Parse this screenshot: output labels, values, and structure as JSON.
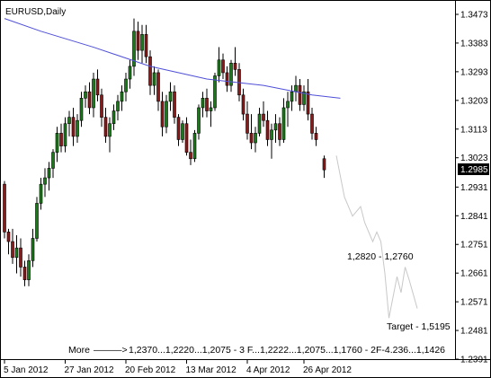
{
  "chart_data": {
    "type": "candlestick",
    "title": "EURUSD,Daily",
    "ylim": [
      1.2391,
      1.3473
    ],
    "y_ticks": [
      "1.3473",
      "1.3383",
      "1.3293",
      "1.3203",
      "1.3113",
      "1.3023",
      "1.2931",
      "1.2841",
      "1.2751",
      "1.2661",
      "1.2571",
      "1.2481",
      "1.2391"
    ],
    "x_ticks": [
      "5 Jan 2012",
      "27 Jan 2012",
      "20 Feb 2012",
      "13 Mar 2012",
      "4 Apr 2012",
      "26 Apr 2012"
    ],
    "last_price": "1.2985",
    "candles": [
      [
        1.294,
        1.295,
        1.277,
        1.279
      ],
      [
        1.279,
        1.28,
        1.272,
        1.276
      ],
      [
        1.276,
        1.28,
        1.269,
        1.271
      ],
      [
        1.271,
        1.278,
        1.266,
        1.274
      ],
      [
        1.274,
        1.277,
        1.265,
        1.268
      ],
      [
        1.268,
        1.27,
        1.262,
        1.264
      ],
      [
        1.264,
        1.272,
        1.262,
        1.27
      ],
      [
        1.27,
        1.28,
        1.268,
        1.277
      ],
      [
        1.277,
        1.29,
        1.276,
        1.288
      ],
      [
        1.288,
        1.296,
        1.286,
        1.294
      ],
      [
        1.294,
        1.299,
        1.29,
        1.296
      ],
      [
        1.296,
        1.301,
        1.292,
        1.299
      ],
      [
        1.299,
        1.305,
        1.296,
        1.304
      ],
      [
        1.304,
        1.312,
        1.301,
        1.31
      ],
      [
        1.31,
        1.313,
        1.304,
        1.306
      ],
      [
        1.306,
        1.315,
        1.304,
        1.313
      ],
      [
        1.313,
        1.317,
        1.309,
        1.315
      ],
      [
        1.315,
        1.318,
        1.306,
        1.309
      ],
      [
        1.309,
        1.316,
        1.307,
        1.314
      ],
      [
        1.314,
        1.323,
        1.312,
        1.321
      ],
      [
        1.321,
        1.325,
        1.318,
        1.323
      ],
      [
        1.323,
        1.326,
        1.316,
        1.318
      ],
      [
        1.318,
        1.329,
        1.315,
        1.327
      ],
      [
        1.327,
        1.33,
        1.32,
        1.322
      ],
      [
        1.322,
        1.324,
        1.312,
        1.315
      ],
      [
        1.315,
        1.318,
        1.307,
        1.309
      ],
      [
        1.309,
        1.315,
        1.304,
        1.313
      ],
      [
        1.313,
        1.319,
        1.311,
        1.317
      ],
      [
        1.317,
        1.322,
        1.314,
        1.32
      ],
      [
        1.32,
        1.325,
        1.317,
        1.323
      ],
      [
        1.323,
        1.329,
        1.32,
        1.327
      ],
      [
        1.327,
        1.333,
        1.324,
        1.331
      ],
      [
        1.331,
        1.346,
        1.328,
        1.342
      ],
      [
        1.342,
        1.345,
        1.333,
        1.336
      ],
      [
        1.336,
        1.344,
        1.332,
        1.341
      ],
      [
        1.341,
        1.344,
        1.332,
        1.334
      ],
      [
        1.334,
        1.336,
        1.322,
        1.325
      ],
      [
        1.325,
        1.331,
        1.322,
        1.329
      ],
      [
        1.329,
        1.33,
        1.317,
        1.32
      ],
      [
        1.32,
        1.323,
        1.309,
        1.312
      ],
      [
        1.312,
        1.322,
        1.31,
        1.32
      ],
      [
        1.32,
        1.326,
        1.317,
        1.323
      ],
      [
        1.323,
        1.325,
        1.313,
        1.315
      ],
      [
        1.315,
        1.316,
        1.306,
        1.308
      ],
      [
        1.308,
        1.314,
        1.307,
        1.313
      ],
      [
        1.313,
        1.315,
        1.303,
        1.304
      ],
      [
        1.304,
        1.308,
        1.3,
        1.302
      ],
      [
        1.302,
        1.311,
        1.301,
        1.31
      ],
      [
        1.31,
        1.319,
        1.308,
        1.318
      ],
      [
        1.318,
        1.323,
        1.315,
        1.321
      ],
      [
        1.321,
        1.324,
        1.315,
        1.317
      ],
      [
        1.317,
        1.32,
        1.312,
        1.318
      ],
      [
        1.318,
        1.329,
        1.317,
        1.328
      ],
      [
        1.328,
        1.337,
        1.326,
        1.333
      ],
      [
        1.333,
        1.335,
        1.327,
        1.329
      ],
      [
        1.329,
        1.331,
        1.323,
        1.325
      ],
      [
        1.325,
        1.333,
        1.323,
        1.332
      ],
      [
        1.332,
        1.337,
        1.328,
        1.33
      ],
      [
        1.33,
        1.332,
        1.32,
        1.322
      ],
      [
        1.322,
        1.324,
        1.314,
        1.316
      ],
      [
        1.316,
        1.32,
        1.308,
        1.31
      ],
      [
        1.31,
        1.316,
        1.305,
        1.307
      ],
      [
        1.307,
        1.312,
        1.304,
        1.31
      ],
      [
        1.31,
        1.318,
        1.309,
        1.316
      ],
      [
        1.316,
        1.32,
        1.312,
        1.314
      ],
      [
        1.314,
        1.317,
        1.306,
        1.308
      ],
      [
        1.308,
        1.313,
        1.302,
        1.311
      ],
      [
        1.311,
        1.316,
        1.307,
        1.313
      ],
      [
        1.313,
        1.315,
        1.306,
        1.308
      ],
      [
        1.308,
        1.321,
        1.307,
        1.318
      ],
      [
        1.318,
        1.323,
        1.312,
        1.32
      ],
      [
        1.32,
        1.325,
        1.317,
        1.323
      ],
      [
        1.323,
        1.328,
        1.32,
        1.325
      ],
      [
        1.325,
        1.327,
        1.317,
        1.319
      ],
      [
        1.319,
        1.325,
        1.317,
        1.323
      ],
      [
        1.323,
        1.327,
        1.314,
        1.316
      ],
      [
        1.316,
        1.318,
        1.308,
        1.31
      ],
      [
        1.31,
        1.312,
        1.306,
        1.308
      ],
      [
        null,
        null,
        null,
        null
      ],
      [
        1.302,
        1.303,
        1.296,
        1.2985
      ]
    ],
    "moving_average": {
      "color": "#4f4fd8",
      "x_index": [
        0,
        9,
        22,
        36,
        50,
        64,
        76,
        83
      ],
      "values": [
        1.346,
        1.342,
        1.337,
        1.331,
        1.327,
        1.325,
        1.322,
        1.321
      ]
    },
    "projection": {
      "color": "#c8c8c8",
      "x_index": [
        82,
        84,
        86,
        88,
        89,
        91,
        92,
        93,
        94,
        95,
        97,
        98,
        99,
        100,
        102
      ],
      "values": [
        1.303,
        1.29,
        1.284,
        1.287,
        1.282,
        1.276,
        1.279,
        1.276,
        1.266,
        1.252,
        1.265,
        1.26,
        1.268,
        1.264,
        1.255
      ]
    },
    "annotations": {
      "range_label": "1,2820 - 1,2760",
      "target_label": "Target - 1,5195",
      "more_prefix": "More",
      "more_arrow": "———>",
      "more_text": "1,2370...1,2220...1,2075 - 3 F...1,2222...1,2075...1,1760 - 2F-4.236...1,1426"
    },
    "colors": {
      "bull": "#1a7a1a",
      "bear": "#8a1a1a",
      "text": "#000000",
      "frame": "#000000"
    },
    "grid": false
  }
}
